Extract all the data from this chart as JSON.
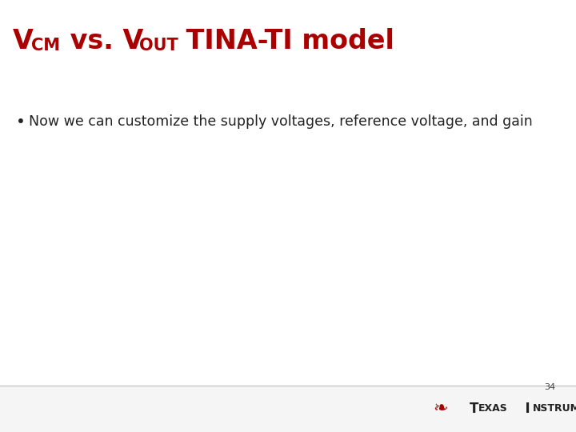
{
  "title_color": "#AA0000",
  "bullet_text": "Now we can customize the supply voltages, reference voltage, and gain",
  "bullet_color": "#222222",
  "bullet_fontsize": 12.5,
  "page_number": "34",
  "background_color": "#FFFFFF",
  "footer_line_color": "#BBBBBB",
  "footer_bg_color": "#F5F5F5",
  "ti_text_color": "#222222",
  "ti_logo_color": "#AA0000",
  "title_main_size": 24,
  "title_sub_size": 15
}
